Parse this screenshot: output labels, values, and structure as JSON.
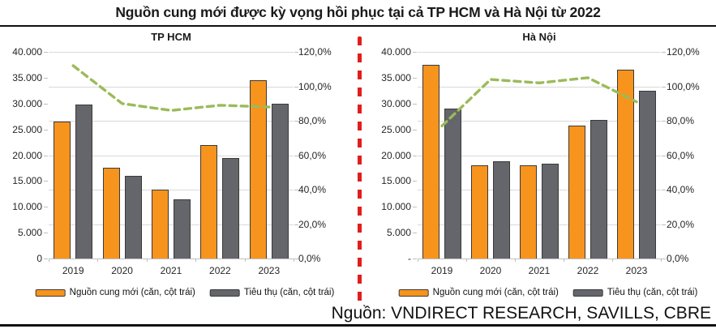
{
  "title": "Nguồn cung mới được kỳ vọng hồi phục tại cả TP HCM và Hà Nội từ 2022",
  "source_note": "Nguồn: VNDIRECT RESEARCH, SAVILLS, CBRE",
  "colors": {
    "supply_bar": "#F7941E",
    "absorption_bar": "#64666B",
    "bar_outline": "#3A3A3A",
    "rate_line": "#9BBB59",
    "divider_red": "#E21D1D",
    "gridline": "#D9D9D9",
    "axis_line": "#BFBFBF"
  },
  "legend": [
    {
      "key": "supply",
      "label": "Nguồn cung mới (căn, cột trái)"
    },
    {
      "key": "absorption",
      "label": "Tiêu thụ (căn, cột trái)"
    }
  ],
  "chart_data": [
    {
      "type": "bar",
      "title": "TP HCM",
      "categories": [
        "2019",
        "2020",
        "2021",
        "2022",
        "2023"
      ],
      "series": [
        {
          "name": "Nguồn cung mới (căn, cột trái)",
          "role": "supply",
          "kind": "bar",
          "axis": "left",
          "values": [
            26500,
            17500,
            13300,
            22000,
            34500
          ]
        },
        {
          "name": "Tiêu thụ (căn, cột trái)",
          "role": "absorption",
          "kind": "bar",
          "axis": "left",
          "values": [
            29800,
            16000,
            11400,
            19500,
            30000
          ]
        },
        {
          "name": "",
          "role": "rate_line",
          "kind": "dashed_line",
          "axis": "right",
          "values": [
            112,
            90,
            86,
            89,
            88
          ]
        }
      ],
      "left_axis": {
        "range": [
          0,
          40000
        ],
        "step": 5000,
        "tick_labels": [
          "40.000",
          "35.000",
          "30.000",
          "25.000",
          "20.000",
          "15.000",
          "10.000",
          "5.000",
          "0"
        ]
      },
      "right_axis": {
        "range": [
          0,
          120
        ],
        "step": 20,
        "tick_labels": [
          "120,0%",
          "100,0%",
          "80,0%",
          "60,0%",
          "40,0%",
          "20,0%",
          "0,0%"
        ]
      },
      "grid": "horizontal",
      "legend_position": "bottom"
    },
    {
      "type": "bar",
      "title": "Hà Nội",
      "categories": [
        "2019",
        "2020",
        "2021",
        "2022",
        "2023"
      ],
      "series": [
        {
          "name": "Nguồn cung mới (căn, cột trái)",
          "role": "supply",
          "kind": "bar",
          "axis": "left",
          "values": [
            37500,
            18100,
            18100,
            25800,
            36500
          ]
        },
        {
          "name": "Tiêu thụ (căn, cột trái)",
          "role": "absorption",
          "kind": "bar",
          "axis": "left",
          "values": [
            29000,
            18800,
            18400,
            26800,
            32500
          ]
        },
        {
          "name": "",
          "role": "rate_line",
          "kind": "dashed_line",
          "axis": "right",
          "values": [
            77,
            104,
            102,
            105,
            91
          ]
        }
      ],
      "left_axis": {
        "range": [
          0,
          40000
        ],
        "step": 5000,
        "tick_labels": [
          "40.000",
          "35.000",
          "30.000",
          "25.000",
          "20.000",
          "15.000",
          "10.000",
          "5.000",
          "-"
        ]
      },
      "right_axis": {
        "range": [
          0,
          120
        ],
        "step": 20,
        "tick_labels": [
          "120,0%",
          "100,0%",
          "80,0%",
          "60,0%",
          "40,0%",
          "20,0%",
          "0,0%"
        ]
      },
      "grid": "horizontal",
      "legend_position": "bottom"
    }
  ]
}
